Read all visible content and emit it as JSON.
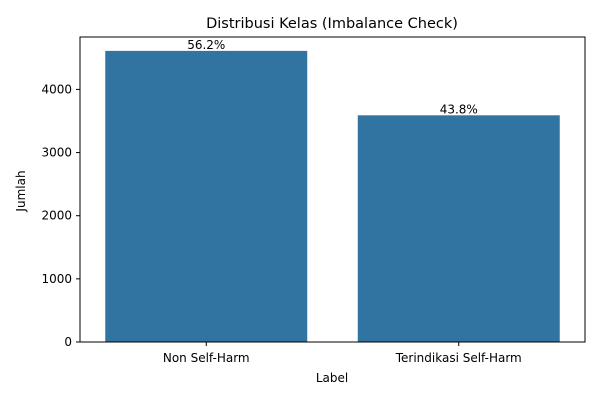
{
  "chart_data": {
    "type": "bar",
    "title": "Distribusi Kelas (Imbalance Check)",
    "xlabel": "Label",
    "ylabel": "Jumlah",
    "categories": [
      "Non Self-Harm",
      "Terindikasi Self-Harm"
    ],
    "values": [
      4610,
      3590
    ],
    "bar_labels": [
      "56.2%",
      "43.8%"
    ],
    "ylim": [
      0,
      4830
    ],
    "yticks": [
      0,
      1000,
      2000,
      3000,
      4000
    ],
    "grid": false,
    "bar_color": "#3274a1"
  }
}
